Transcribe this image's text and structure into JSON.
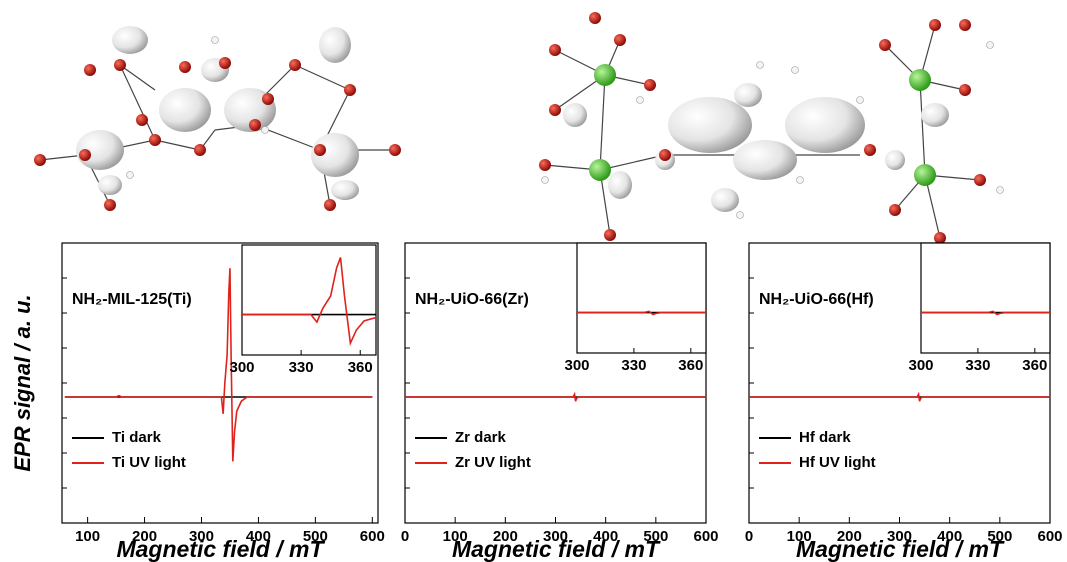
{
  "chart_data": [
    {
      "type": "line",
      "annotation": "NH₂-MIL-125(Ti)",
      "xlabel": "Magnetic field / mT",
      "ylabel": "EPR signal / a. u.",
      "x": [
        60,
        150,
        155,
        160,
        300,
        335,
        338,
        341,
        345,
        348,
        350,
        352,
        355,
        358,
        362,
        370,
        380,
        600
      ],
      "series": [
        {
          "name": "Ti dark",
          "color": "#000000",
          "values": [
            0,
            0,
            0,
            0,
            0,
            0,
            0,
            0,
            0,
            0,
            0,
            0,
            0,
            0,
            0,
            0,
            0,
            0
          ]
        },
        {
          "name": "Ti UV light",
          "color": "#e0221b",
          "values": [
            0,
            0,
            0.01,
            0,
            0,
            0,
            -0.12,
            0.1,
            0.3,
            0.75,
            0.92,
            0.3,
            -0.46,
            -0.25,
            -0.1,
            -0.03,
            0,
            0
          ]
        }
      ],
      "xlim": [
        55,
        610
      ],
      "xticks": [
        100,
        200,
        300,
        400,
        500,
        600
      ],
      "ylim": [
        -0.9,
        1.1
      ],
      "inset": {
        "xlim": [
          300,
          368
        ],
        "xticks": [
          300,
          330,
          360
        ],
        "ylim": [
          -0.65,
          1.12
        ]
      }
    },
    {
      "type": "line",
      "annotation": "NH₂-UiO-66(Zr)",
      "xlabel": "Magnetic field / mT",
      "x": [
        0,
        335,
        338,
        340,
        342,
        345,
        600
      ],
      "series": [
        {
          "name": "Zr dark",
          "color": "#000000",
          "values": [
            0,
            0,
            0,
            0,
            0,
            0,
            0
          ]
        },
        {
          "name": "Zr UV light",
          "color": "#e0221b",
          "values": [
            0,
            0,
            0.02,
            -0.03,
            -0.01,
            0,
            0
          ]
        }
      ],
      "xlim": [
        0,
        600
      ],
      "xticks": [
        0,
        100,
        200,
        300,
        400,
        500,
        600
      ],
      "ylim": [
        -0.9,
        1.1
      ],
      "inset": {
        "xlim": [
          300,
          368
        ],
        "xticks": [
          300,
          330,
          360
        ],
        "ylim": [
          -0.65,
          1.12
        ]
      }
    },
    {
      "type": "line",
      "annotation": "NH₂-UiO-66(Hf)",
      "xlabel": "Magnetic field / mT",
      "x": [
        0,
        335,
        338,
        340,
        342,
        345,
        600
      ],
      "series": [
        {
          "name": "Hf dark",
          "color": "#000000",
          "values": [
            0,
            0,
            0,
            0,
            0,
            0,
            0
          ]
        },
        {
          "name": "Hf UV light",
          "color": "#e0221b",
          "values": [
            0,
            0,
            0.02,
            -0.03,
            -0.01,
            0,
            0
          ]
        }
      ],
      "xlim": [
        0,
        600
      ],
      "xticks": [
        0,
        100,
        200,
        300,
        400,
        500,
        600
      ],
      "ylim": [
        -0.9,
        1.1
      ],
      "inset": {
        "xlim": [
          300,
          368
        ],
        "xticks": [
          300,
          330,
          360
        ],
        "ylim": [
          -0.65,
          1.12
        ]
      }
    }
  ]
}
